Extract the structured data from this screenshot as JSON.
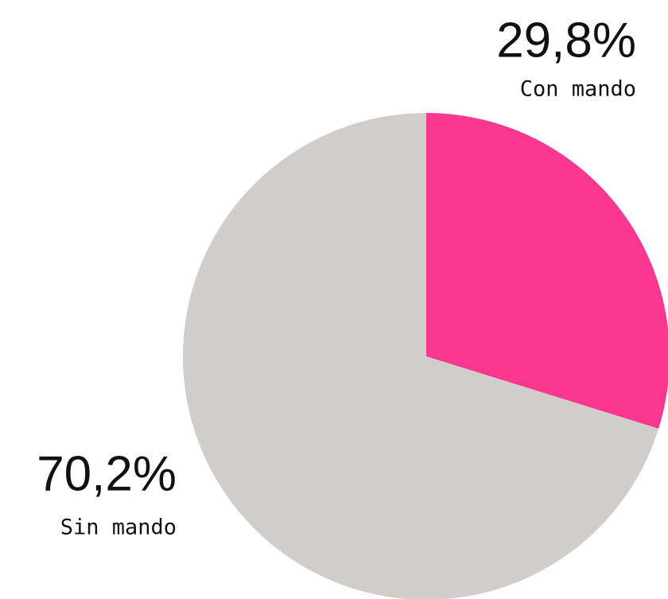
{
  "chart_data": {
    "type": "pie",
    "categories": [
      "Con mando",
      "Sin mando"
    ],
    "values": [
      29.8,
      70.2
    ],
    "value_labels": [
      "29,8%",
      "70,2%"
    ],
    "colors": [
      "#fc3790",
      "#d0cdcb"
    ]
  }
}
